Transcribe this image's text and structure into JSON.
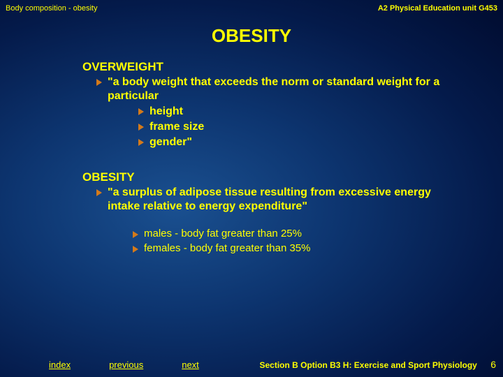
{
  "header": {
    "left": "Body composition - obesity",
    "right": "A2 Physical Education unit G453"
  },
  "title": "OBESITY",
  "overweight": {
    "heading": "OVERWEIGHT",
    "definition": "\"a body weight that exceeds the norm or standard weight for a particular",
    "factors": [
      "height",
      "frame size",
      "gender\""
    ]
  },
  "obesity": {
    "heading": "OBESITY",
    "definition": "\"a surplus of adipose tissue resulting from excessive energy intake relative to  energy expenditure\""
  },
  "thresholds": {
    "male": "males  - body fat greater than 25%",
    "female": "females  - body fat greater than 35%"
  },
  "nav": {
    "index": "index",
    "previous": "previous",
    "next": "next"
  },
  "footer": {
    "section": "Section B Option B3 H: Exercise and Sport Physiology",
    "page": "6"
  },
  "colors": {
    "text": "#ffff00",
    "bullet": "#d47a1a",
    "bg_center": "#1a5090",
    "bg_edge": "#000b2e"
  }
}
